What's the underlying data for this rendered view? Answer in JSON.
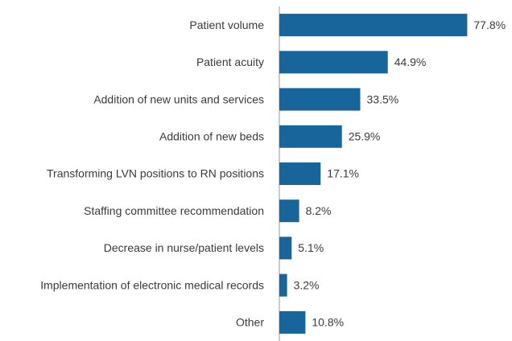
{
  "chart_data": {
    "type": "hbar",
    "color": "#17659a",
    "categories": [
      "Patient volume",
      "Patient acuity",
      "Addition of new units and services",
      "Addition of new beds",
      "Transforming LVN positions to RN positions",
      "Staffing committee recommendation",
      "Decrease in nurse/patient levels",
      "Implementation of electronic medical records",
      "Other"
    ],
    "values": [
      77.8,
      44.9,
      33.5,
      25.9,
      17.1,
      8.2,
      5.1,
      3.2,
      10.8
    ],
    "value_labels": [
      "77.8%",
      "44.9%",
      "33.5%",
      "25.9%",
      "17.1%",
      "8.2%",
      "5.1%",
      "3.2%",
      "10.8%"
    ]
  }
}
